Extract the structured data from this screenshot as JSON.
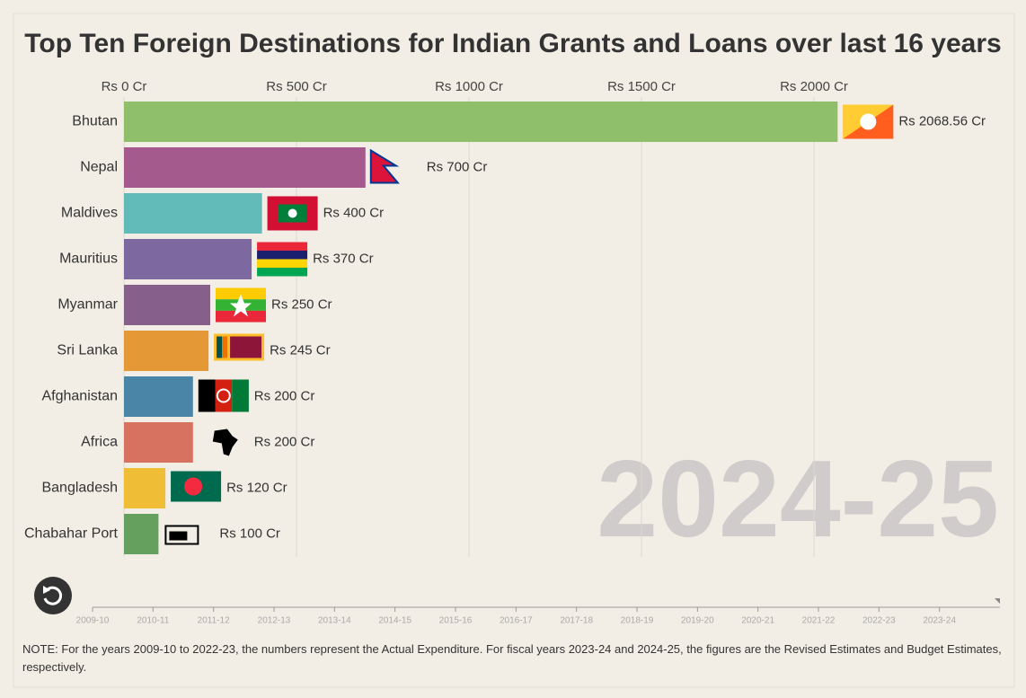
{
  "chart_data": {
    "type": "bar",
    "orientation": "horizontal",
    "title": "Top Ten Foreign Destinations for Indian Grants and Loans over last 16 years",
    "categories": [
      "Bhutan",
      "Nepal",
      "Maldives",
      "Mauritius",
      "Myanmar",
      "Sri Lanka",
      "Afghanistan",
      "Africa",
      "Bangladesh",
      "Chabahar Port"
    ],
    "values": [
      2068.56,
      700,
      400,
      370,
      250,
      245,
      200,
      200,
      120,
      100
    ],
    "value_labels": [
      "Rs 2068.56 Cr",
      "Rs 700 Cr",
      "Rs 400 Cr",
      "Rs 370 Cr",
      "Rs 250 Cr",
      "Rs 245 Cr",
      "Rs 200 Cr",
      "Rs 200 Cr",
      "Rs 120 Cr",
      "Rs 100 Cr"
    ],
    "colors": [
      "#8fbf6a",
      "#a45a8c",
      "#62bbb8",
      "#7d68a0",
      "#86608a",
      "#e59836",
      "#4a85a8",
      "#d87260",
      "#f0bd36",
      "#66a05e"
    ],
    "xlim": [
      0,
      2545
    ],
    "xticks": [
      {
        "value": 0,
        "label": "Rs 0 Cr"
      },
      {
        "value": 500,
        "label": "Rs 500 Cr"
      },
      {
        "value": 1000,
        "label": "Rs 1000 Cr"
      },
      {
        "value": 1500,
        "label": "Rs 1500 Cr"
      },
      {
        "value": 2000,
        "label": "Rs 2000 Cr"
      }
    ],
    "grid": true,
    "current_period": "2024-25",
    "timeline": [
      "2009-10",
      "2010-11",
      "2011-12",
      "2012-13",
      "2013-14",
      "2014-15",
      "2015-16",
      "2016-17",
      "2017-18",
      "2018-19",
      "2019-20",
      "2020-21",
      "2021-22",
      "2022-23",
      "2023-24"
    ],
    "note": "NOTE: For the years 2009-10 to 2022-23, the numbers represent the Actual Expenditure. For fiscal years 2023-24 and 2024-25, the figures are the Revised Estimates and Budget Estimates, respectively."
  }
}
